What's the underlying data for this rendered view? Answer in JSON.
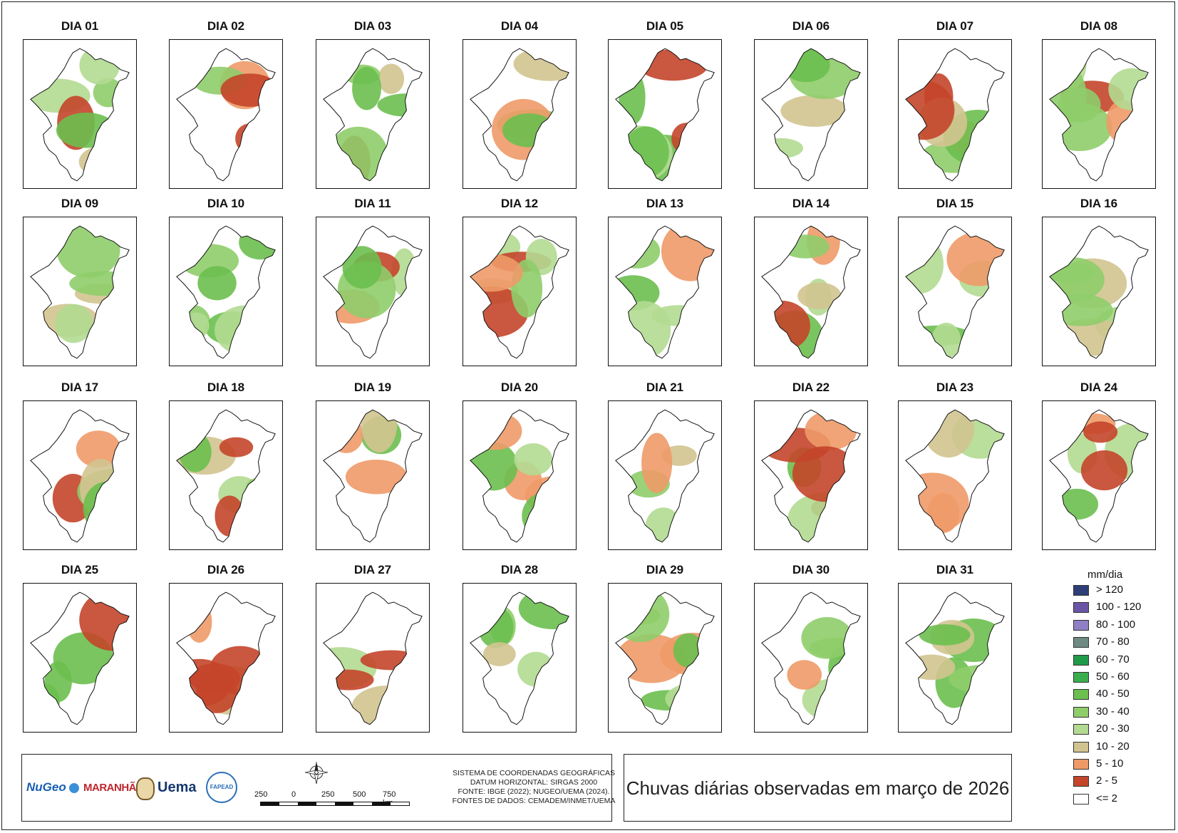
{
  "title": "Chuvas diárias observadas em março de 2026",
  "days": [
    "DIA 01",
    "DIA 02",
    "DIA 03",
    "DIA 04",
    "DIA 05",
    "DIA 06",
    "DIA 07",
    "DIA 08",
    "DIA 09",
    "DIA 10",
    "DIA 11",
    "DIA 12",
    "DIA 13",
    "DIA 14",
    "DIA 15",
    "DIA 16",
    "DIA 17",
    "DIA 18",
    "DIA 19",
    "DIA 20",
    "DIA 21",
    "DIA 22",
    "DIA 23",
    "DIA 24",
    "DIA 25",
    "DIA 26",
    "DIA 27",
    "DIA 28",
    "DIA 29",
    "DIA 30",
    "DIA 31"
  ],
  "legend": {
    "title": "mm/dia",
    "classes": [
      {
        "label": "> 120",
        "color": "#2e3f78"
      },
      {
        "label": "100 - 120",
        "color": "#6a54a6"
      },
      {
        "label": "80 - 100",
        "color": "#8f7fc4"
      },
      {
        "label": "70 - 80",
        "color": "#6f8a83"
      },
      {
        "label": "60 - 70",
        "color": "#1f9a49"
      },
      {
        "label": "50 - 60",
        "color": "#3aae4c"
      },
      {
        "label": "40 - 50",
        "color": "#6bbf4f"
      },
      {
        "label": "30 - 40",
        "color": "#8fcd6a"
      },
      {
        "label": "20 - 30",
        "color": "#b3da91"
      },
      {
        "label": "10 - 20",
        "color": "#d2c490"
      },
      {
        "label": "5 - 10",
        "color": "#ee9a68"
      },
      {
        "label": "2 - 5",
        "color": "#c4452a"
      },
      {
        "label": "<= 2",
        "color": "#ffffff"
      }
    ]
  },
  "footer": {
    "logos": [
      "NuGeo",
      "MARANHÃO",
      "Uema",
      "FAPEAD"
    ],
    "metadata": [
      "SISTEMA DE COORDENADAS GEOGRÁFICAS",
      "DATUM HORIZONTAL: SIRGAS 2000",
      "FONTE: IBGE (2022); NUGEO/UEMA (2024).",
      "FONTES DE DADOS: CEMADEM/INMET/UEMA"
    ],
    "scale_labels": [
      "250",
      "0",
      "250",
      "500",
      "750 km"
    ]
  }
}
